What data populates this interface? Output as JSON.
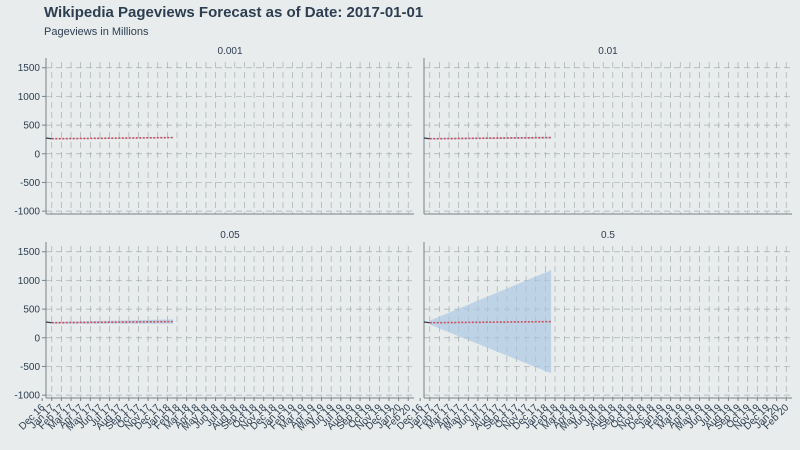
{
  "title": "Wikipedia Pageviews Forecast as of Date: 2017-01-01",
  "subtitle": "Pageviews in Millions",
  "colors": {
    "background": "#e8eced",
    "grid": "#a7aeb0",
    "axis": "#7a8285",
    "text": "#2c3e50",
    "forecast": "#c8505a",
    "history": "#2c3e50",
    "band": "#a9c6e3"
  },
  "chart_data": {
    "type": "line",
    "facet_layout": "2x2",
    "shared_axes": true,
    "grid": true,
    "ylim": [
      -1050,
      1600
    ],
    "y_ticks": [
      -1000,
      -500,
      0,
      500,
      1000,
      1500
    ],
    "x_ticks": [
      "Dec 16",
      "Jan 17",
      "Feb 17",
      "Mar 17",
      "Apr 17",
      "May 17",
      "Jun 17",
      "Jul 17",
      "Aug 17",
      "Sep 17",
      "Oct 17",
      "Nov 17",
      "Dec 17",
      "Jan 18",
      "Feb 18",
      "Mar 18",
      "Apr 18",
      "May 18",
      "Jun 18",
      "Jul 18",
      "Aug 18",
      "Sep 18",
      "Oct 18",
      "Nov 18",
      "Dec 18",
      "Jan 19",
      "Feb 19",
      "Mar 19",
      "Apr 19",
      "May 19",
      "Jun 19",
      "Jul 19",
      "Aug 19",
      "Sep 19",
      "Oct 19",
      "Nov 19",
      "Dec 19",
      "Jan 20",
      "Feb 20"
    ],
    "xlim_months": [
      0.4,
      38.6
    ],
    "history": {
      "x_months": [
        0.4,
        1.0
      ],
      "values": [
        275,
        262
      ]
    },
    "forecast": {
      "x_months": [
        1.0,
        13.6
      ],
      "start": 262,
      "end": 282
    },
    "panels": [
      {
        "label": "0.001",
        "band_upper": [
          270,
          290
        ],
        "band_lower": [
          254,
          274
        ]
      },
      {
        "label": "0.01",
        "band_upper": [
          272,
          300
        ],
        "band_lower": [
          252,
          264
        ]
      },
      {
        "label": "0.05",
        "band_upper": [
          278,
          320
        ],
        "band_lower": [
          246,
          244
        ]
      },
      {
        "label": "0.5",
        "band_upper": [
          300,
          1180
        ],
        "band_lower": [
          230,
          -620
        ]
      }
    ]
  }
}
